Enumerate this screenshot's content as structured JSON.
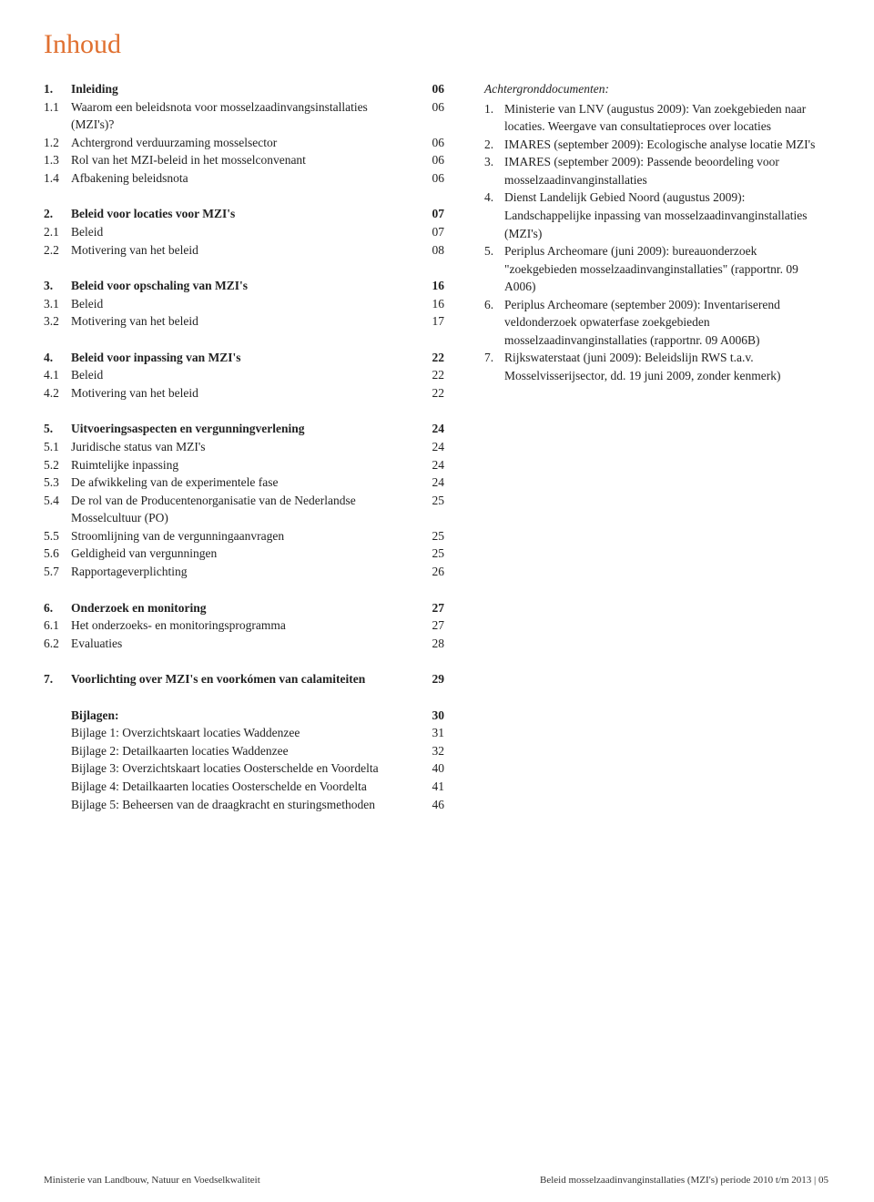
{
  "colors": {
    "accent": "#e07030",
    "text": "#222222",
    "background": "#ffffff"
  },
  "typography": {
    "title_fontsize_pt": 22,
    "body_fontsize_pt": 10,
    "font_family": "Georgia, serif"
  },
  "title": "Inhoud",
  "toc": [
    {
      "section": [
        {
          "num": "1.",
          "text": "Inleiding",
          "page": "06",
          "bold": true
        },
        {
          "num": "1.1",
          "text": "Waarom een beleidsnota voor mosselzaadinvangsinstallaties (MZI's)?",
          "page": "06"
        },
        {
          "num": "1.2",
          "text": "Achtergrond verduurzaming mosselsector",
          "page": "06"
        },
        {
          "num": "1.3",
          "text": "Rol van het MZI-beleid in het mosselconvenant",
          "page": "06"
        },
        {
          "num": "1.4",
          "text": "Afbakening beleidsnota",
          "page": "06"
        }
      ]
    },
    {
      "section": [
        {
          "num": "2.",
          "text": "Beleid voor locaties voor MZI's",
          "page": "07",
          "bold": true
        },
        {
          "num": "2.1",
          "text": "Beleid",
          "page": "07"
        },
        {
          "num": "2.2",
          "text": "Motivering van het beleid",
          "page": "08"
        }
      ]
    },
    {
      "section": [
        {
          "num": "3.",
          "text": "Beleid voor opschaling van MZI's",
          "page": "16",
          "bold": true
        },
        {
          "num": "3.1",
          "text": "Beleid",
          "page": "16"
        },
        {
          "num": "3.2",
          "text": "Motivering van het beleid",
          "page": "17"
        }
      ]
    },
    {
      "section": [
        {
          "num": "4.",
          "text": "Beleid voor inpassing van MZI's",
          "page": "22",
          "bold": true
        },
        {
          "num": "4.1",
          "text": "Beleid",
          "page": "22"
        },
        {
          "num": "4.2",
          "text": "Motivering van het beleid",
          "page": "22"
        }
      ]
    },
    {
      "section": [
        {
          "num": "5.",
          "text": "Uitvoeringsaspecten en vergunningverlening",
          "page": "24",
          "bold": true
        },
        {
          "num": "5.1",
          "text": "Juridische status van MZI's",
          "page": "24"
        },
        {
          "num": "5.2",
          "text": "Ruimtelijke inpassing",
          "page": "24"
        },
        {
          "num": "5.3",
          "text": "De afwikkeling van de experimentele fase",
          "page": "24"
        },
        {
          "num": "5.4",
          "text": "De rol van de Producentenorganisatie van de Nederlandse Mosselcultuur (PO)",
          "page": "25"
        },
        {
          "num": "5.5",
          "text": "Stroomlijning van de vergunningaanvragen",
          "page": "25"
        },
        {
          "num": "5.6",
          "text": "Geldigheid van vergunningen",
          "page": "25"
        },
        {
          "num": "5.7",
          "text": "Rapportageverplichting",
          "page": "26"
        }
      ]
    },
    {
      "section": [
        {
          "num": "6.",
          "text": "Onderzoek en monitoring",
          "page": "27",
          "bold": true
        },
        {
          "num": "6.1",
          "text": "Het onderzoeks- en monitoringsprogramma",
          "page": "27"
        },
        {
          "num": "6.2",
          "text": "Evaluaties",
          "page": "28"
        }
      ]
    },
    {
      "section": [
        {
          "num": "7.",
          "text": "Voorlichting over MZI's en voorkómen van calamiteiten",
          "page": "29",
          "bold": true
        }
      ]
    },
    {
      "section": [
        {
          "num": "",
          "text": "Bijlagen:",
          "page": "30",
          "bold": true
        },
        {
          "num": "",
          "text": "Bijlage 1:  Overzichtskaart locaties Waddenzee",
          "page": "31"
        },
        {
          "num": "",
          "text": "Bijlage 2:  Detailkaarten locaties Waddenzee",
          "page": "32"
        },
        {
          "num": "",
          "text": "Bijlage 3:  Overzichtskaart locaties Oosterschelde en Voordelta",
          "page": "40"
        },
        {
          "num": "",
          "text": "Bijlage 4:  Detailkaarten locaties Oosterschelde en Voordelta",
          "page": "41"
        },
        {
          "num": "",
          "text": "Bijlage 5:  Beheersen van de draagkracht en sturingsmethoden",
          "page": "46"
        }
      ]
    }
  ],
  "achtergrond": {
    "title": "Achtergronddocumenten:",
    "items": [
      {
        "num": "1.",
        "text": "Ministerie van LNV (augustus 2009): Van zoekgebieden naar locaties. Weergave van consultatieproces over locaties"
      },
      {
        "num": "2.",
        "text": "IMARES (september 2009): Ecologische analyse locatie MZI's"
      },
      {
        "num": "3.",
        "text": "IMARES (september 2009): Passende beoordeling voor mosselzaadinvanginstallaties"
      },
      {
        "num": "4.",
        "text": "Dienst Landelijk Gebied Noord (augustus 2009): Landschappelijke inpassing van mosselzaadinvanginstallaties (MZI's)"
      },
      {
        "num": "5.",
        "text": "Periplus Archeomare (juni 2009): bureauonderzoek \"zoekgebieden mosselzaadinvanginstallaties\" (rapportnr. 09 A006)"
      },
      {
        "num": "6.",
        "text": "Periplus Archeomare (september 2009): Inventariserend veldonderzoek opwaterfase zoekgebieden mosselzaadinvanginstallaties (rapportnr. 09 A006B)"
      },
      {
        "num": "7.",
        "text": "Rijkswaterstaat (juni 2009): Beleidslijn RWS t.a.v. Mosselvisserijsector, dd. 19 juni 2009, zonder kenmerk)"
      }
    ]
  },
  "footer": {
    "left": "Ministerie van Landbouw, Natuur en Voedselkwaliteit",
    "right": "Beleid mosselzaadinvanginstallaties (MZI's) periode 2010 t/m 2013 | 05"
  }
}
